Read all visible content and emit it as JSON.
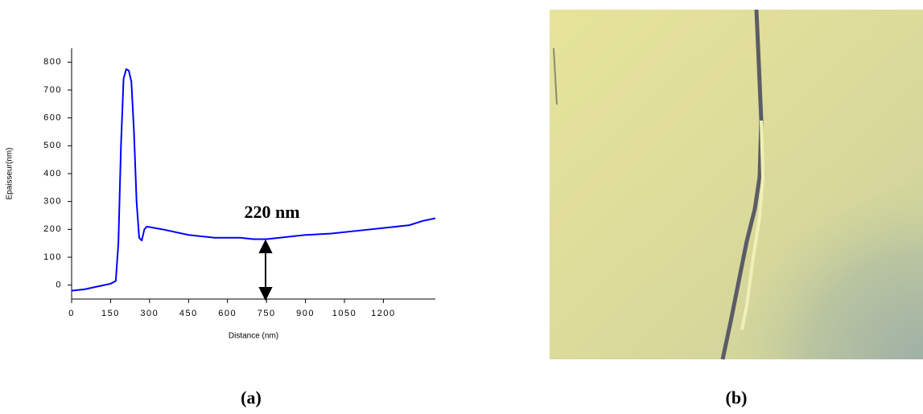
{
  "chart_data": {
    "type": "line",
    "x_label": "Distance (nm)",
    "y_label": "Epaisseur(nm)",
    "annotation": "220 nm",
    "panel_labels": [
      "(a)",
      "(b)"
    ],
    "xlim": [
      0,
      1400
    ],
    "xticks": [
      0,
      150,
      300,
      450,
      600,
      750,
      900,
      1050,
      1200
    ],
    "ylim": [
      -50,
      850
    ],
    "yticks": [
      0,
      100,
      200,
      300,
      400,
      500,
      600,
      700,
      800
    ],
    "series": [
      {
        "color": "#0000ff",
        "x": [
          0,
          50,
          100,
          150,
          170,
          180,
          190,
          200,
          210,
          220,
          230,
          240,
          250,
          260,
          270,
          280,
          290,
          350,
          450,
          550,
          650,
          700,
          750,
          800,
          850,
          900,
          1000,
          1100,
          1200,
          1300,
          1350,
          1400
        ],
        "values": [
          -20,
          -15,
          -5,
          5,
          15,
          150,
          500,
          740,
          775,
          770,
          730,
          550,
          300,
          170,
          160,
          200,
          210,
          200,
          180,
          170,
          170,
          165,
          165,
          170,
          175,
          180,
          185,
          195,
          205,
          215,
          230,
          240
        ]
      }
    ]
  }
}
